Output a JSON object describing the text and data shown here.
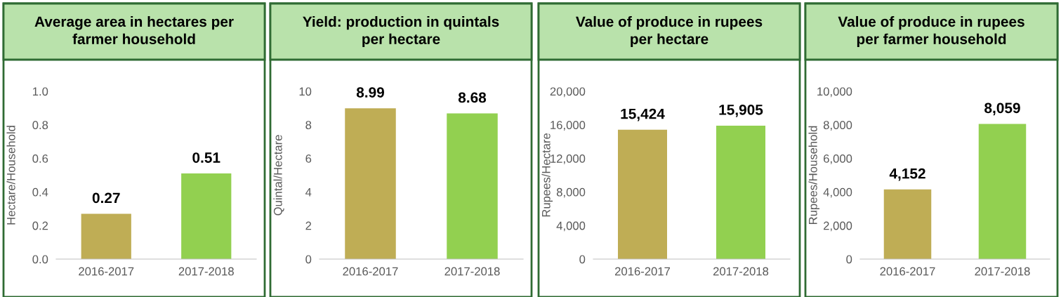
{
  "chart_data": [
    {
      "type": "bar",
      "title": "Average area in hectares per farmer household",
      "ylabel": "Hectare/Household",
      "categories": [
        "2016-2017",
        "2017-2018"
      ],
      "values": [
        0.27,
        0.51
      ],
      "colors": [
        "#bfad55",
        "#92d050"
      ],
      "value_labels": [
        "0.27",
        "0.51"
      ],
      "ylim": [
        0,
        1.0
      ],
      "yticks": [
        {
          "value": 0,
          "label": "0.0"
        },
        0.2,
        0.4,
        0.6,
        0.8,
        {
          "value": 1.0,
          "label": "1.0"
        }
      ],
      "grid": false,
      "legend": false
    },
    {
      "type": "bar",
      "title": "Yield: production in quintals per hectare",
      "ylabel": "Quintal/Hectare",
      "categories": [
        "2016-2017",
        "2017-2018"
      ],
      "values": [
        8.99,
        8.68
      ],
      "colors": [
        "#bfad55",
        "#92d050"
      ],
      "value_labels": [
        "8.99",
        "8.68"
      ],
      "ylim": [
        0,
        10
      ],
      "yticks": [
        0,
        2,
        4,
        6,
        8,
        10
      ],
      "grid": false,
      "legend": false
    },
    {
      "type": "bar",
      "title": "Value of produce in rupees per hectare",
      "ylabel": "Rupees/Hectare",
      "categories": [
        "2016-2017",
        "2017-2018"
      ],
      "values": [
        15424,
        15905
      ],
      "colors": [
        "#bfad55",
        "#92d050"
      ],
      "value_labels": [
        "15,424",
        "15,905"
      ],
      "ylim": [
        0,
        20000
      ],
      "yticks": [
        0,
        {
          "value": 4000,
          "label": "4,000"
        },
        {
          "value": 8000,
          "label": "8,000"
        },
        {
          "value": 12000,
          "label": "12,000"
        },
        {
          "value": 16000,
          "label": "16,000"
        },
        {
          "value": 20000,
          "label": "20,000"
        }
      ],
      "grid": false,
      "legend": false
    },
    {
      "type": "bar",
      "title": "Value of produce in rupees per farmer household",
      "ylabel": "Rupees/Household",
      "categories": [
        "2016-2017",
        "2017-2018"
      ],
      "values": [
        4152,
        8059
      ],
      "colors": [
        "#bfad55",
        "#92d050"
      ],
      "value_labels": [
        "4,152",
        "8,059"
      ],
      "ylim": [
        0,
        10000
      ],
      "yticks": [
        0,
        {
          "value": 2000,
          "label": "2,000"
        },
        {
          "value": 4000,
          "label": "4,000"
        },
        {
          "value": 6000,
          "label": "6,000"
        },
        {
          "value": 8000,
          "label": "8,000"
        },
        {
          "value": 10000,
          "label": "10,000"
        }
      ],
      "grid": false,
      "legend": false
    }
  ]
}
